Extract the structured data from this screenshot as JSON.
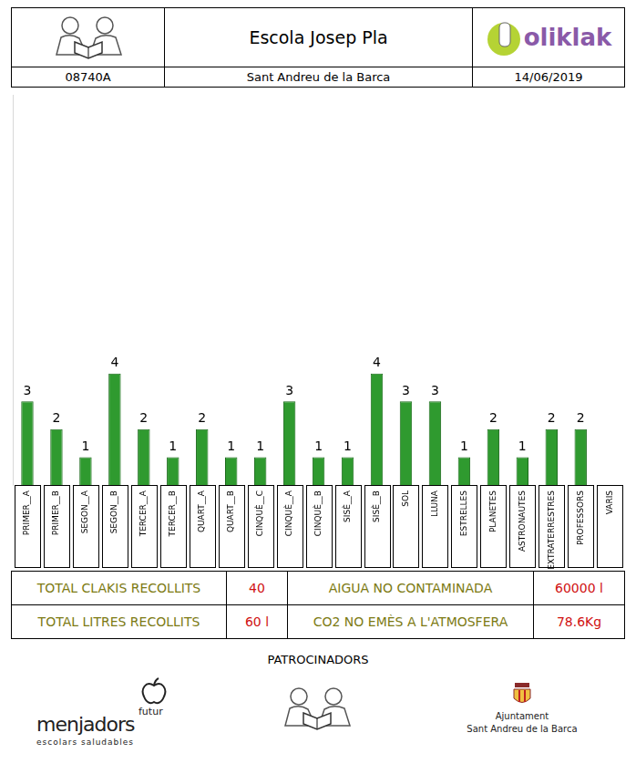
{
  "header": {
    "school": "Escola Josep Pla",
    "code": "08740A",
    "town": "Sant Andreu de la Barca",
    "date": "14/06/2019",
    "logo": "oliklak"
  },
  "chart_data": {
    "type": "bar",
    "categories": [
      "PRIMER__A",
      "PRIMER__B",
      "SEGON__A",
      "SEGON__B",
      "TERCER__A",
      "TERCER__B",
      "QUART__A",
      "QUART__B",
      "CINQUÈ__C",
      "CINQUÈ__A",
      "CINQUÈ__B",
      "SISÈ__A",
      "SISÈ__B",
      "SOL",
      "LLUNA",
      "ESTRELLES",
      "PLANETES",
      "ASTRONAUTES",
      "EXTRATERRESTRES",
      "PROFESSORS",
      "VARIS"
    ],
    "values": [
      3,
      2,
      1,
      4,
      2,
      1,
      2,
      1,
      1,
      3,
      1,
      1,
      4,
      3,
      3,
      1,
      2,
      1,
      2,
      2,
      null
    ],
    "color": "#2f9a2f",
    "ylim": [
      0,
      14
    ],
    "data_labels": true,
    "tick_labels": "x",
    "grid": false
  },
  "totals": {
    "rows": [
      [
        {
          "label": "TOTAL CLAKIS RECOLLITS",
          "value": "40"
        },
        {
          "label": "AIGUA NO CONTAMINADA",
          "value": "60000 l"
        }
      ],
      [
        {
          "label": "TOTAL LITRES RECOLLITS",
          "value": "60 l"
        },
        {
          "label": "CO2 NO EMÈS A L'ATMOSFERA",
          "value": "78.6Kg"
        }
      ]
    ]
  },
  "sponsors": {
    "title": "PATROCINADORS",
    "menjadors": {
      "name": "menjadors",
      "tag": "futur",
      "subtitle": "escolars saludables"
    },
    "ajuntament": {
      "name": "Ajuntament",
      "town": "Sant Andreu de la Barca"
    }
  }
}
